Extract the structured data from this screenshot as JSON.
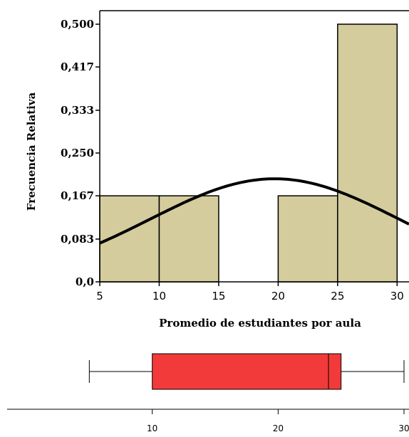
{
  "chart_data": [
    {
      "type": "bar",
      "subtype": "histogram",
      "bins": [
        {
          "x0": 5,
          "x1": 10,
          "value": 0.167
        },
        {
          "x0": 10,
          "x1": 15,
          "value": 0.167
        },
        {
          "x0": 15,
          "x1": 20,
          "value": 0.0
        },
        {
          "x0": 20,
          "x1": 25,
          "value": 0.167
        },
        {
          "x0": 25,
          "x1": 30,
          "value": 0.5
        }
      ],
      "normal_curve": {
        "mean": 19.7,
        "sd": 10.5,
        "peak_value": 0.2
      },
      "xlabel": "Promedio de estudiantes por aula",
      "ylabel": "Frecuencia Relativa",
      "xlim": [
        5,
        31
      ],
      "ylim": [
        0,
        0.5
      ],
      "xticks": [
        5,
        10,
        15,
        20,
        25,
        30
      ],
      "yticks": [
        0.0,
        0.083,
        0.167,
        0.25,
        0.333,
        0.417,
        0.5
      ],
      "ytick_labels": [
        "0,0",
        "0,083",
        "0,167",
        "0,250",
        "0,333",
        "0,417",
        "0,500"
      ],
      "bar_color": "#d4cc9c",
      "grid": false,
      "legend": "none"
    },
    {
      "type": "boxplot",
      "min": 5,
      "q1": 10,
      "median": 24,
      "q3": 25,
      "max": 30,
      "xlim": [
        0,
        30
      ],
      "xticks": [
        10,
        20,
        30
      ],
      "box_color": "#f23a3a"
    }
  ]
}
